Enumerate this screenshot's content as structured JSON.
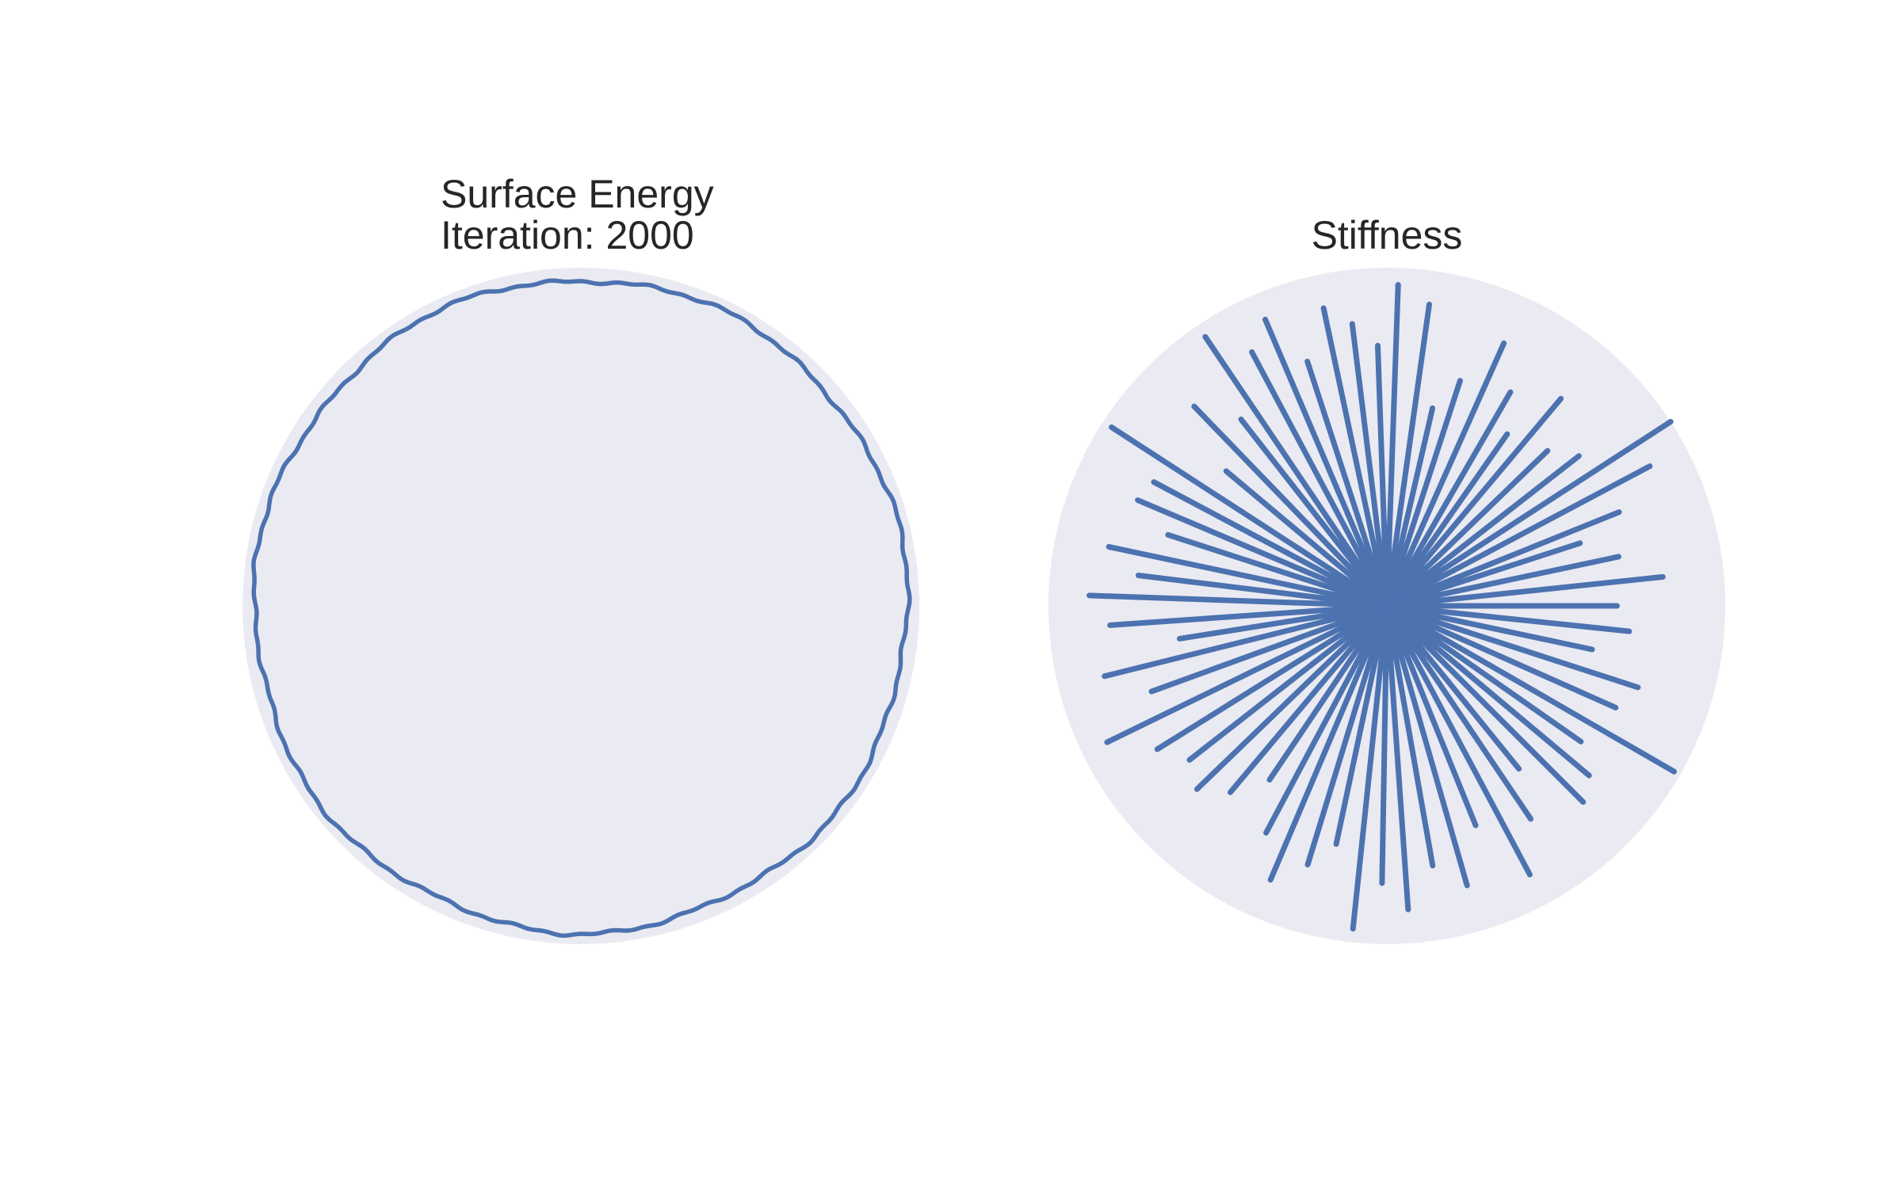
{
  "chart_data": [
    {
      "type": "polar-line",
      "title_lines": [
        "Surface Energy",
        "Iteration: 2000"
      ],
      "color": "#4c72b0",
      "background": "#eaeaf2",
      "rlim": [
        0,
        1.0
      ],
      "grid": false,
      "radius_base": 0.965,
      "radius_ripple": 0.012
    },
    {
      "type": "polar-line",
      "title_lines": [
        "Stiffness"
      ],
      "color": "#4c72b0",
      "background": "#eaeaf2",
      "rlim": [
        0,
        1.0
      ],
      "grid": false,
      "spikes_deg_r": [
        [
          0,
          0.68
        ],
        [
          6,
          0.82
        ],
        [
          12,
          0.7
        ],
        [
          18,
          0.6
        ],
        [
          22,
          0.74
        ],
        [
          28,
          0.88
        ],
        [
          33,
          1.0
        ],
        [
          38,
          0.72
        ],
        [
          44,
          0.66
        ],
        [
          50,
          0.8
        ],
        [
          55,
          0.62
        ],
        [
          60,
          0.73
        ],
        [
          66,
          0.85
        ],
        [
          72,
          0.7
        ],
        [
          77,
          0.6
        ],
        [
          82,
          0.9
        ],
        [
          88,
          0.95
        ],
        [
          92,
          0.77
        ],
        [
          97,
          0.84
        ],
        [
          102,
          0.9
        ],
        [
          108,
          0.76
        ],
        [
          113,
          0.92
        ],
        [
          118,
          0.85
        ],
        [
          124,
          0.96
        ],
        [
          128,
          0.7
        ],
        [
          134,
          0.82
        ],
        [
          140,
          0.62
        ],
        [
          147,
          0.97
        ],
        [
          152,
          0.78
        ],
        [
          157,
          0.8
        ],
        [
          162,
          0.68
        ],
        [
          168,
          0.84
        ],
        [
          173,
          0.74
        ],
        [
          178,
          0.88
        ],
        [
          184,
          0.82
        ],
        [
          189,
          0.62
        ],
        [
          194,
          0.86
        ],
        [
          200,
          0.74
        ],
        [
          206,
          0.92
        ],
        [
          212,
          0.8
        ],
        [
          218,
          0.74
        ],
        [
          224,
          0.78
        ],
        [
          230,
          0.72
        ],
        [
          236,
          0.62
        ],
        [
          242,
          0.76
        ],
        [
          247,
          0.88
        ],
        [
          253,
          0.8
        ],
        [
          258,
          0.72
        ],
        [
          264,
          0.96
        ],
        [
          269,
          0.82
        ],
        [
          274,
          0.9
        ],
        [
          280,
          0.78
        ],
        [
          286,
          0.86
        ],
        [
          292,
          0.7
        ],
        [
          298,
          0.9
        ],
        [
          304,
          0.76
        ],
        [
          309,
          0.62
        ],
        [
          315,
          0.82
        ],
        [
          320,
          0.78
        ],
        [
          325,
          0.7
        ],
        [
          330,
          0.98
        ],
        [
          336,
          0.74
        ],
        [
          342,
          0.78
        ],
        [
          348,
          0.62
        ],
        [
          354,
          0.72
        ]
      ]
    }
  ]
}
